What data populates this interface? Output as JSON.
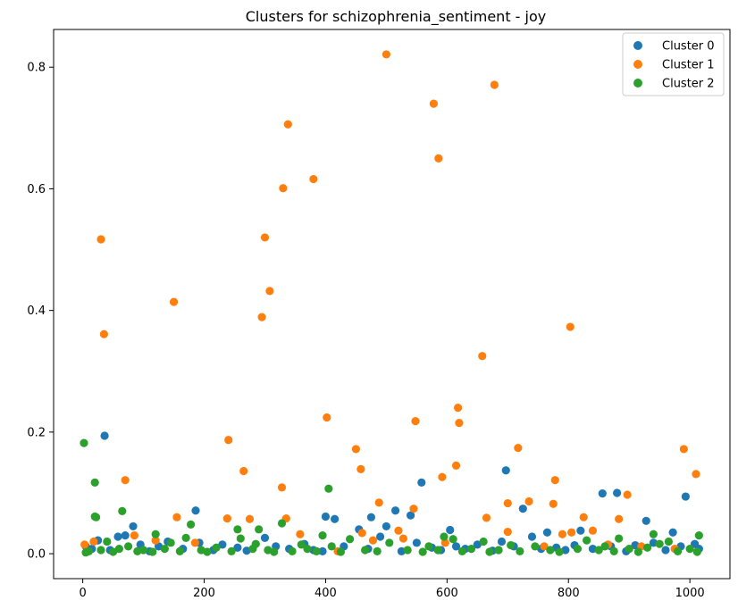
{
  "chart_data": {
    "type": "scatter",
    "title": "Clusters for schizophrenia_sentiment - joy",
    "xlabel": "",
    "ylabel": "",
    "xlim": [
      -48,
      1066
    ],
    "ylim": [
      -0.041,
      0.862
    ],
    "xticks": [
      0,
      200,
      400,
      600,
      800,
      1000
    ],
    "xtick_labels": [
      "0",
      "200",
      "400",
      "600",
      "800",
      "1000"
    ],
    "yticks": [
      0.0,
      0.2,
      0.4,
      0.6,
      0.8
    ],
    "ytick_labels": [
      "0.0",
      "0.2",
      "0.4",
      "0.6",
      "0.8"
    ],
    "grid": false,
    "legend_position": "top-right",
    "series": [
      {
        "name": "Cluster 0",
        "color": "#1f77b4",
        "points": [
          [
            36,
            0.194
          ],
          [
            83,
            0.045
          ],
          [
            186,
            0.071
          ],
          [
            400,
            0.061
          ],
          [
            415,
            0.057
          ],
          [
            475,
            0.06
          ],
          [
            500,
            0.045
          ],
          [
            515,
            0.071
          ],
          [
            540,
            0.063
          ],
          [
            558,
            0.117
          ],
          [
            605,
            0.039
          ],
          [
            697,
            0.137
          ],
          [
            725,
            0.074
          ],
          [
            765,
            0.035
          ],
          [
            820,
            0.038
          ],
          [
            856,
            0.099
          ],
          [
            880,
            0.1
          ],
          [
            928,
            0.054
          ],
          [
            972,
            0.035
          ],
          [
            993,
            0.094
          ],
          [
            1008,
            0.016
          ],
          [
            5,
            0.012
          ],
          [
            15,
            0.008
          ],
          [
            25,
            0.022
          ],
          [
            45,
            0.006
          ],
          [
            58,
            0.028
          ],
          [
            70,
            0.03
          ],
          [
            95,
            0.015
          ],
          [
            110,
            0.004
          ],
          [
            125,
            0.012
          ],
          [
            140,
            0.02
          ],
          [
            165,
            0.008
          ],
          [
            192,
            0.018
          ],
          [
            215,
            0.006
          ],
          [
            230,
            0.015
          ],
          [
            255,
            0.01
          ],
          [
            270,
            0.005
          ],
          [
            300,
            0.026
          ],
          [
            318,
            0.012
          ],
          [
            340,
            0.008
          ],
          [
            365,
            0.016
          ],
          [
            380,
            0.006
          ],
          [
            395,
            0.004
          ],
          [
            430,
            0.012
          ],
          [
            455,
            0.04
          ],
          [
            470,
            0.008
          ],
          [
            490,
            0.028
          ],
          [
            525,
            0.004
          ],
          [
            550,
            0.018
          ],
          [
            575,
            0.01
          ],
          [
            590,
            0.006
          ],
          [
            615,
            0.012
          ],
          [
            630,
            0.008
          ],
          [
            650,
            0.015
          ],
          [
            675,
            0.005
          ],
          [
            690,
            0.02
          ],
          [
            710,
            0.012
          ],
          [
            740,
            0.028
          ],
          [
            755,
            0.008
          ],
          [
            780,
            0.01
          ],
          [
            795,
            0.006
          ],
          [
            810,
            0.014
          ],
          [
            840,
            0.008
          ],
          [
            870,
            0.012
          ],
          [
            895,
            0.004
          ],
          [
            910,
            0.014
          ],
          [
            940,
            0.018
          ],
          [
            960,
            0.006
          ],
          [
            985,
            0.012
          ],
          [
            1015,
            0.008
          ]
        ]
      },
      {
        "name": "Cluster 1",
        "color": "#ff7f0e",
        "points": [
          [
            30,
            0.517
          ],
          [
            35,
            0.361
          ],
          [
            70,
            0.121
          ],
          [
            150,
            0.414
          ],
          [
            155,
            0.06
          ],
          [
            240,
            0.187
          ],
          [
            265,
            0.136
          ],
          [
            295,
            0.389
          ],
          [
            300,
            0.52
          ],
          [
            308,
            0.432
          ],
          [
            328,
            0.109
          ],
          [
            330,
            0.601
          ],
          [
            338,
            0.706
          ],
          [
            380,
            0.616
          ],
          [
            402,
            0.224
          ],
          [
            450,
            0.172
          ],
          [
            458,
            0.139
          ],
          [
            488,
            0.084
          ],
          [
            500,
            0.821
          ],
          [
            548,
            0.218
          ],
          [
            578,
            0.74
          ],
          [
            586,
            0.65
          ],
          [
            592,
            0.126
          ],
          [
            615,
            0.145
          ],
          [
            618,
            0.24
          ],
          [
            620,
            0.215
          ],
          [
            658,
            0.325
          ],
          [
            665,
            0.059
          ],
          [
            678,
            0.771
          ],
          [
            700,
            0.083
          ],
          [
            717,
            0.174
          ],
          [
            735,
            0.086
          ],
          [
            775,
            0.082
          ],
          [
            778,
            0.121
          ],
          [
            803,
            0.373
          ],
          [
            825,
            0.06
          ],
          [
            883,
            0.057
          ],
          [
            897,
            0.097
          ],
          [
            990,
            0.172
          ],
          [
            1010,
            0.131
          ],
          [
            3,
            0.015
          ],
          [
            18,
            0.02
          ],
          [
            85,
            0.03
          ],
          [
            120,
            0.022
          ],
          [
            185,
            0.018
          ],
          [
            238,
            0.058
          ],
          [
            275,
            0.057
          ],
          [
            335,
            0.058
          ],
          [
            358,
            0.032
          ],
          [
            420,
            0.004
          ],
          [
            460,
            0.034
          ],
          [
            478,
            0.022
          ],
          [
            520,
            0.038
          ],
          [
            528,
            0.025
          ],
          [
            545,
            0.074
          ],
          [
            597,
            0.018
          ],
          [
            700,
            0.036
          ],
          [
            760,
            0.012
          ],
          [
            790,
            0.032
          ],
          [
            805,
            0.035
          ],
          [
            840,
            0.038
          ],
          [
            865,
            0.015
          ],
          [
            920,
            0.012
          ],
          [
            975,
            0.008
          ]
        ]
      },
      {
        "name": "Cluster 2",
        "color": "#2ca02c",
        "points": [
          [
            2,
            0.182
          ],
          [
            20,
            0.117
          ],
          [
            20,
            0.061
          ],
          [
            22,
            0.06
          ],
          [
            65,
            0.07
          ],
          [
            120,
            0.032
          ],
          [
            178,
            0.048
          ],
          [
            255,
            0.04
          ],
          [
            290,
            0.04
          ],
          [
            328,
            0.05
          ],
          [
            405,
            0.107
          ],
          [
            395,
            0.03
          ],
          [
            595,
            0.028
          ],
          [
            883,
            0.025
          ],
          [
            940,
            0.032
          ],
          [
            1015,
            0.03
          ],
          [
            5,
            0.002
          ],
          [
            10,
            0.004
          ],
          [
            30,
            0.006
          ],
          [
            40,
            0.02
          ],
          [
            50,
            0.003
          ],
          [
            60,
            0.008
          ],
          [
            75,
            0.012
          ],
          [
            90,
            0.004
          ],
          [
            100,
            0.006
          ],
          [
            115,
            0.003
          ],
          [
            135,
            0.008
          ],
          [
            145,
            0.018
          ],
          [
            160,
            0.004
          ],
          [
            170,
            0.026
          ],
          [
            195,
            0.006
          ],
          [
            205,
            0.003
          ],
          [
            220,
            0.01
          ],
          [
            245,
            0.004
          ],
          [
            260,
            0.025
          ],
          [
            280,
            0.008
          ],
          [
            285,
            0.016
          ],
          [
            305,
            0.006
          ],
          [
            315,
            0.003
          ],
          [
            345,
            0.004
          ],
          [
            360,
            0.015
          ],
          [
            370,
            0.008
          ],
          [
            385,
            0.004
          ],
          [
            410,
            0.012
          ],
          [
            425,
            0.003
          ],
          [
            440,
            0.024
          ],
          [
            465,
            0.006
          ],
          [
            485,
            0.004
          ],
          [
            505,
            0.018
          ],
          [
            535,
            0.006
          ],
          [
            560,
            0.003
          ],
          [
            570,
            0.012
          ],
          [
            585,
            0.006
          ],
          [
            610,
            0.024
          ],
          [
            625,
            0.004
          ],
          [
            640,
            0.008
          ],
          [
            660,
            0.02
          ],
          [
            670,
            0.003
          ],
          [
            685,
            0.006
          ],
          [
            705,
            0.014
          ],
          [
            720,
            0.004
          ],
          [
            745,
            0.012
          ],
          [
            770,
            0.006
          ],
          [
            785,
            0.003
          ],
          [
            815,
            0.008
          ],
          [
            830,
            0.022
          ],
          [
            850,
            0.006
          ],
          [
            860,
            0.012
          ],
          [
            875,
            0.004
          ],
          [
            900,
            0.008
          ],
          [
            915,
            0.003
          ],
          [
            930,
            0.01
          ],
          [
            950,
            0.016
          ],
          [
            965,
            0.02
          ],
          [
            980,
            0.004
          ],
          [
            1000,
            0.008
          ],
          [
            1012,
            0.003
          ]
        ]
      }
    ]
  }
}
